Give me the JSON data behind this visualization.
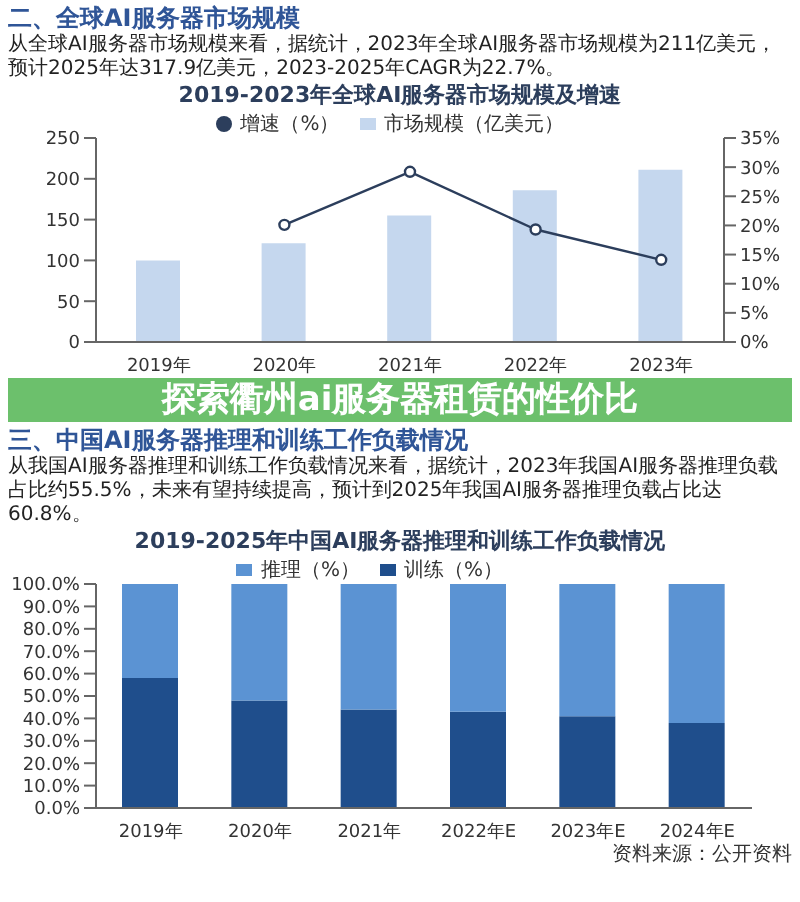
{
  "chart_data": [
    {
      "type": "bar",
      "title": "2019-2023年全球AI服务器市场规模及增速",
      "annotations": [
        "二、全球AI服务器市场规模",
        "从全球AI服务器市场规模来看，据统计，2023年全球AI服务器市场规模为211亿美元，预计2025年达317.9亿美元，2023-2025年CAGR为22.7%。"
      ],
      "categories": [
        "2019年",
        "2020年",
        "2021年",
        "2022年",
        "2023年"
      ],
      "series": [
        {
          "name": "市场规模（亿美元）",
          "color": "#c5d7ee",
          "values": [
            100,
            121,
            155,
            186,
            211
          ]
        },
        {
          "name": "增速（%）",
          "type": "line",
          "axis": "y2",
          "color": "#2c3e5c",
          "values": [
            null,
            20.1,
            29.2,
            19.3,
            14.1
          ]
        }
      ],
      "ylim": [
        0,
        250
      ],
      "yticks": [
        0,
        50,
        100,
        150,
        200,
        250
      ],
      "y2lim": [
        0,
        35
      ],
      "y2ticks": [
        {
          "value": 0,
          "label": "0%"
        },
        {
          "value": 5,
          "label": "5%"
        },
        {
          "value": 10,
          "label": "10%"
        },
        {
          "value": 15,
          "label": "15%"
        },
        {
          "value": 20,
          "label": "20%"
        },
        {
          "value": 25,
          "label": "25%"
        },
        {
          "value": 30,
          "label": "30%"
        },
        {
          "value": 35,
          "label": "35%"
        }
      ],
      "legend": "top",
      "marker": "circle"
    },
    {
      "type": "bar",
      "title": "2019-2025年中国AI服务器推理和训练工作负载情况",
      "annotations": [
        "探索衢州ai服务器租赁的性价比",
        "三、中国AI服务器推理和训练工作负载情况",
        "从我国AI服务器推理和训练工作负载情况来看，据统计，2023年我国AI服务器推理负载占比约55.5%，未来有望持续提高，预计到2025年我国AI服务器推理负载占比达60.8%。",
        "资料来源：公开资料"
      ],
      "categories": [
        "2019年",
        "2020年",
        "2021年",
        "2022年E",
        "2023年E",
        "2024年E"
      ],
      "series": [
        {
          "name": "训练（%）",
          "color": "#1f4e8c",
          "values": [
            58,
            48,
            44,
            43,
            41,
            38
          ]
        },
        {
          "name": "推理（%）",
          "color": "#5b93d3",
          "values": [
            42,
            52,
            56,
            57,
            59,
            62
          ]
        }
      ],
      "stacked": true,
      "ylim": [
        0,
        100
      ],
      "yticks": [
        {
          "value": 0,
          "label": "0.0%"
        },
        {
          "value": 10,
          "label": "10.0%"
        },
        {
          "value": 20,
          "label": "20.0%"
        },
        {
          "value": 30,
          "label": "30.0%"
        },
        {
          "value": 40,
          "label": "40.0%"
        },
        {
          "value": 50,
          "label": "50.0%"
        },
        {
          "value": 60,
          "label": "60.0%"
        },
        {
          "value": 70,
          "label": "70.0%"
        },
        {
          "value": 80,
          "label": "80.0%"
        },
        {
          "value": 90,
          "label": "90.0%"
        },
        {
          "value": 100,
          "label": "100.0%"
        }
      ],
      "legend": "top"
    }
  ]
}
